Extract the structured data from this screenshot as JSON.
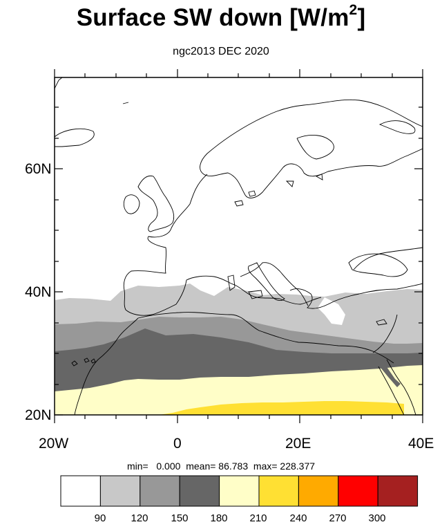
{
  "title_main": "Surface SW down [W/m",
  "title_sup": "2",
  "title_close": "]",
  "subtitle": "ngc2013 DEC 2020",
  "lat_labels": [
    "60N",
    "40N",
    "20N"
  ],
  "lon_labels": [
    "20W",
    "0",
    "20E",
    "40E"
  ],
  "stats": {
    "min_label": "min=",
    "min": "0.000",
    "mean_label": "mean=",
    "mean": "86.783",
    "max_label": "max=",
    "max": "228.377"
  },
  "colorbar": {
    "colors": [
      "#ffffff",
      "#c8c8c8",
      "#989898",
      "#666666",
      "#fffec8",
      "#ffe033",
      "#ffaa00",
      "#ff0000",
      "#a52020"
    ],
    "labels": [
      "90",
      "120",
      "150",
      "180",
      "210",
      "240",
      "270",
      "300"
    ]
  },
  "map_data": {
    "lon_range": [
      -20,
      40
    ],
    "lat_range": [
      20,
      75
    ],
    "bands": [
      {
        "color": "#c8c8c8",
        "lat_top": 38.5,
        "lat_bottom": 35
      },
      {
        "color": "#989898",
        "lat_top": 35,
        "lat_bottom": 31
      },
      {
        "color": "#666666",
        "lat_top": 31,
        "lat_bottom": 26
      },
      {
        "color": "#fffec8",
        "lat_top": 26,
        "lat_bottom": 22
      },
      {
        "color": "#ffe033",
        "lat_top": 22,
        "lat_bottom": 20
      }
    ]
  }
}
